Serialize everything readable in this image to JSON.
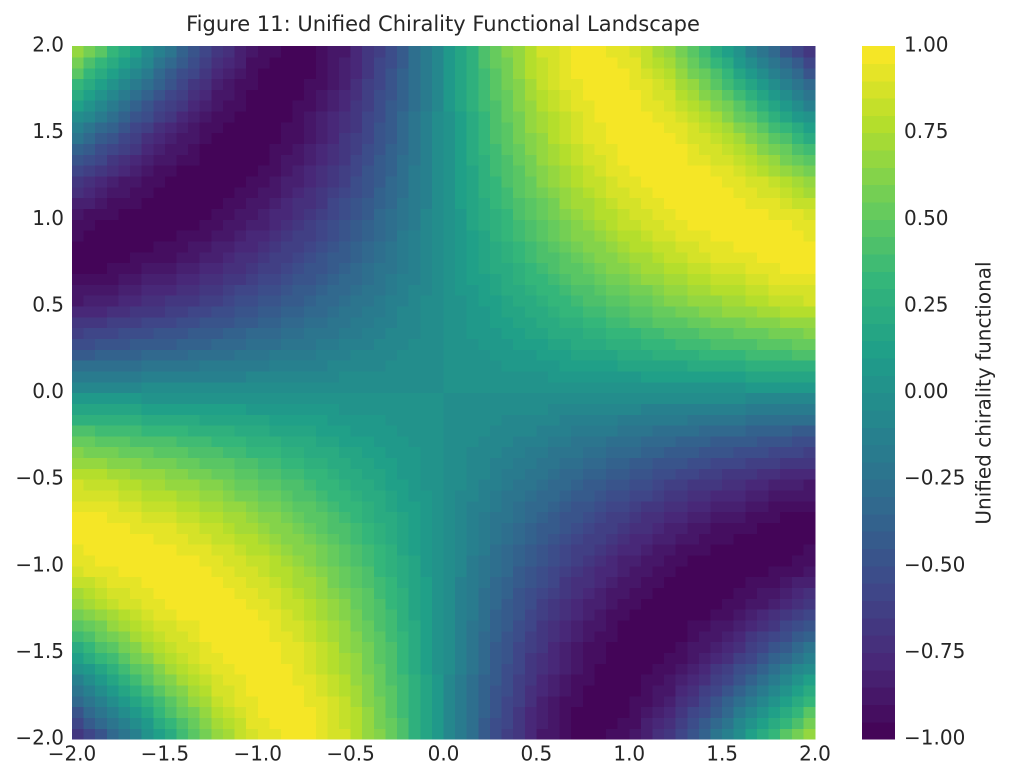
{
  "chart_data": {
    "type": "contourf",
    "title": "Figure 11: Unified Chirality Functional Landscape",
    "colorbar_label": "Unified chirality functional",
    "x": [
      -2,
      -1.75,
      -1.5,
      -1.25,
      -1,
      -0.75,
      -0.5,
      -0.25,
      0,
      0.25,
      0.5,
      0.75,
      1,
      1.25,
      1.5,
      1.75,
      2
    ],
    "y": [
      -2,
      -1.75,
      -1.5,
      -1.25,
      -1,
      -0.75,
      -0.5,
      -0.25,
      0,
      0.25,
      0.5,
      0.75,
      1,
      1.25,
      1.5,
      1.75,
      2
    ],
    "z": [
      [
        -0.76,
        -0.35,
        0.14,
        0.6,
        0.91,
        1,
        0.84,
        0.48,
        0,
        -0.48,
        -0.84,
        -1,
        -0.91,
        -0.6,
        -0.14,
        0.35,
        0.76
      ],
      [
        -0.35,
        0.08,
        0.49,
        0.82,
        0.98,
        0.97,
        0.77,
        0.42,
        0,
        -0.42,
        -0.77,
        -0.97,
        -0.98,
        -0.82,
        -0.49,
        -0.08,
        0.35
      ],
      [
        0.14,
        0.49,
        0.78,
        0.95,
        1,
        0.9,
        0.68,
        0.37,
        0,
        -0.37,
        -0.68,
        -0.9,
        -1,
        -0.95,
        -0.78,
        -0.49,
        -0.14
      ],
      [
        0.6,
        0.82,
        0.95,
        1,
        0.95,
        0.81,
        0.59,
        0.31,
        0,
        -0.31,
        -0.59,
        -0.81,
        -0.95,
        -1,
        -0.95,
        -0.82,
        -0.6
      ],
      [
        0.91,
        0.98,
        1,
        0.95,
        0.84,
        0.68,
        0.48,
        0.25,
        0,
        -0.25,
        -0.48,
        -0.68,
        -0.84,
        -0.95,
        -1,
        -0.98,
        -0.91
      ],
      [
        1,
        0.97,
        0.9,
        0.81,
        0.68,
        0.53,
        0.37,
        0.19,
        0,
        -0.19,
        -0.37,
        -0.53,
        -0.68,
        -0.81,
        -0.9,
        -0.97,
        -1
      ],
      [
        0.84,
        0.77,
        0.68,
        0.59,
        0.48,
        0.37,
        0.25,
        0.12,
        0,
        -0.12,
        -0.25,
        -0.37,
        -0.48,
        -0.59,
        -0.68,
        -0.77,
        -0.84
      ],
      [
        0.48,
        0.42,
        0.37,
        0.31,
        0.25,
        0.19,
        0.12,
        0.06,
        0,
        -0.06,
        -0.12,
        -0.19,
        -0.25,
        -0.31,
        -0.37,
        -0.42,
        -0.48
      ],
      [
        0,
        0,
        0,
        0,
        0,
        0,
        0,
        0,
        0,
        0,
        0,
        0,
        0,
        0,
        0,
        0,
        0
      ],
      [
        -0.48,
        -0.42,
        -0.37,
        -0.31,
        -0.25,
        -0.19,
        -0.12,
        -0.06,
        0,
        0.06,
        0.12,
        0.19,
        0.25,
        0.31,
        0.37,
        0.42,
        0.48
      ],
      [
        -0.84,
        -0.77,
        -0.68,
        -0.59,
        -0.48,
        -0.37,
        -0.25,
        -0.12,
        0,
        0.12,
        0.25,
        0.37,
        0.48,
        0.59,
        0.68,
        0.77,
        0.84
      ],
      [
        -1,
        -0.97,
        -0.9,
        -0.81,
        -0.68,
        -0.53,
        -0.37,
        -0.19,
        0,
        0.19,
        0.37,
        0.53,
        0.68,
        0.81,
        0.9,
        0.97,
        1
      ],
      [
        -0.91,
        -0.98,
        -1,
        -0.95,
        -0.84,
        -0.68,
        -0.48,
        -0.25,
        0,
        0.25,
        0.48,
        0.68,
        0.84,
        0.95,
        1,
        0.98,
        0.91
      ],
      [
        -0.6,
        -0.82,
        -0.95,
        -1,
        -0.95,
        -0.81,
        -0.59,
        -0.31,
        0,
        0.31,
        0.59,
        0.81,
        0.95,
        1,
        0.95,
        0.82,
        0.6
      ],
      [
        -0.14,
        -0.49,
        -0.78,
        -0.95,
        -1,
        -0.9,
        -0.68,
        -0.37,
        0,
        0.37,
        0.68,
        0.9,
        1,
        0.95,
        0.78,
        0.49,
        0.14
      ],
      [
        0.35,
        -0.08,
        -0.49,
        -0.82,
        -0.98,
        -0.97,
        -0.77,
        -0.42,
        0,
        0.42,
        0.77,
        0.97,
        0.98,
        0.82,
        0.49,
        0.08,
        -0.35
      ],
      [
        0.76,
        0.35,
        -0.14,
        -0.6,
        -0.91,
        -1,
        -0.84,
        -0.48,
        0,
        0.48,
        0.84,
        1,
        0.91,
        0.6,
        0.14,
        -0.35,
        -0.76
      ]
    ],
    "xlim": [
      -2,
      2
    ],
    "ylim": [
      -2,
      2
    ],
    "zlim": [
      -1,
      1
    ],
    "xticks": [
      {
        "value": -2,
        "label": "−2.0"
      },
      {
        "value": -1.5,
        "label": "−1.5"
      },
      {
        "value": -1,
        "label": "−1.0"
      },
      {
        "value": -0.5,
        "label": "−0.5"
      },
      {
        "value": 0,
        "label": "0.0"
      },
      {
        "value": 0.5,
        "label": "0.5"
      },
      {
        "value": 1,
        "label": "1.0"
      },
      {
        "value": 1.5,
        "label": "1.5"
      },
      {
        "value": 2,
        "label": "2.0"
      }
    ],
    "yticks": [
      {
        "value": -2,
        "label": "−2.0"
      },
      {
        "value": -1.5,
        "label": "−1.5"
      },
      {
        "value": -1,
        "label": "−1.0"
      },
      {
        "value": -0.5,
        "label": "−0.5"
      },
      {
        "value": 0,
        "label": "0.0"
      },
      {
        "value": 0.5,
        "label": "0.5"
      },
      {
        "value": 1,
        "label": "1.0"
      },
      {
        "value": 1.5,
        "label": "1.5"
      },
      {
        "value": 2,
        "label": "2.0"
      }
    ],
    "zticks": [
      {
        "value": -1,
        "label": "−1.00"
      },
      {
        "value": -0.75,
        "label": "−0.75"
      },
      {
        "value": -0.5,
        "label": "−0.50"
      },
      {
        "value": -0.25,
        "label": "−0.25"
      },
      {
        "value": 0,
        "label": "0.00"
      },
      {
        "value": 0.25,
        "label": "0.25"
      },
      {
        "value": 0.5,
        "label": "0.50"
      },
      {
        "value": 0.75,
        "label": "0.75"
      },
      {
        "value": 1,
        "label": "1.00"
      }
    ],
    "colormap": [
      "#440154",
      "#482878",
      "#3e4989",
      "#31688e",
      "#26828e",
      "#1f9e89",
      "#35b779",
      "#6ece58",
      "#b5de2b",
      "#fde725"
    ]
  }
}
